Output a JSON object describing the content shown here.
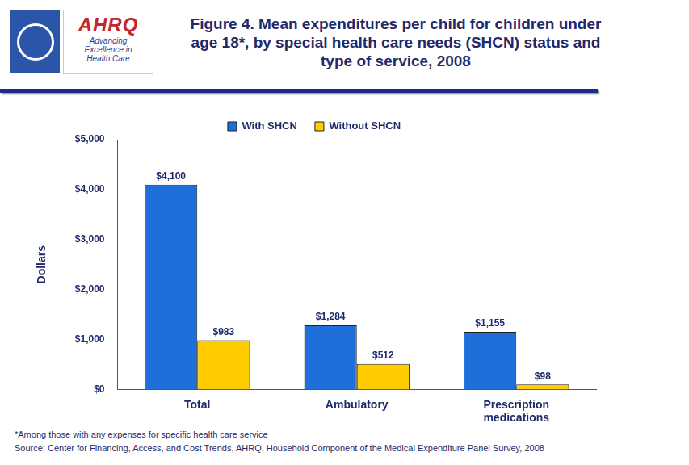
{
  "logo": {
    "name": "AHRQ",
    "tagline": [
      "Advancing",
      "Excellence in",
      "Health Care"
    ]
  },
  "chart_data": {
    "type": "bar",
    "title": "Figure 4. Mean expenditures per child for children under age 18*, by special health care needs (SHCN) status and type of service, 2008",
    "y_label": "Dollars",
    "categories": [
      "Total",
      "Ambulatory",
      "Prescription medications"
    ],
    "series": [
      {
        "name": "With SHCN",
        "color": "#1E6FD9",
        "values": [
          4100,
          1284,
          1155
        ],
        "value_labels": [
          "$4,100",
          "$1,284",
          "$1,155"
        ]
      },
      {
        "name": "Without SHCN",
        "color": "#FFCC00",
        "values": [
          983,
          512,
          98
        ],
        "value_labels": [
          "$983",
          "$512",
          "$98"
        ]
      }
    ],
    "ylim": [
      0,
      5000
    ],
    "yticks": [
      {
        "value": 0,
        "label": "$0"
      },
      {
        "value": 1000,
        "label": "$1,000"
      },
      {
        "value": 2000,
        "label": "$2,000"
      },
      {
        "value": 3000,
        "label": "$3,000"
      },
      {
        "value": 4000,
        "label": "$4,000"
      },
      {
        "value": 5000,
        "label": "$5,000"
      }
    ],
    "grid": false,
    "legend": "top",
    "data_labels": true,
    "footnote": "*Among those with any expenses for specific health care service",
    "source": "Source: Center for Financing, Access, and Cost Trends, AHRQ, Household Component of the Medical Expenditure Panel Survey,  2008"
  }
}
